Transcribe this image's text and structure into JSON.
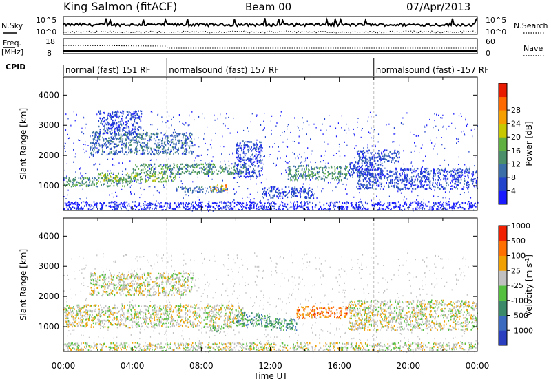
{
  "header": {
    "station": "King Salmon (fitACF)",
    "beam": "Beam 00",
    "date": "07/Apr/2013"
  },
  "left_labels": {
    "nsky": "N.Sky",
    "freq": "Freq.",
    "freq_unit": "[MHz]",
    "cpid": "CPID"
  },
  "right_labels": {
    "nsearch": "N.Search",
    "nave": "Nave"
  },
  "noise_axis": {
    "top": "10^5",
    "bottom": "10^0"
  },
  "freq_axis": {
    "top": "18",
    "bottom": "8"
  },
  "nave_axis": {
    "top": "60",
    "bottom": "0"
  },
  "cpid_segments": [
    {
      "label": "normal (fast) 151 RF",
      "start_hour": 0,
      "end_hour": 6
    },
    {
      "label": "normalsound (fast) 157 RF",
      "start_hour": 6,
      "end_hour": 18
    },
    {
      "label": "normalsound (fast) -157 RF",
      "start_hour": 18,
      "end_hour": 24
    }
  ],
  "power_colorbar": {
    "label": "Power [dB]",
    "ticks": [
      "4",
      "8",
      "12",
      "16",
      "20",
      "24",
      "28"
    ],
    "colors": [
      "#1a1aff",
      "#2244cc",
      "#3b6fa8",
      "#4a8f6a",
      "#5fb040",
      "#c8c800",
      "#f5a000",
      "#ff6a00",
      "#e81a00"
    ]
  },
  "velocity_colorbar": {
    "label_main": "Velocity [m s",
    "label_sup": "-1",
    "label_end": "]",
    "ticks": [
      "1000",
      "500",
      "100",
      "25",
      "-25",
      "-100",
      "-500",
      "-1000"
    ],
    "colors": [
      "#2a3fc0",
      "#3a6ac0",
      "#3a8a6a",
      "#55c040",
      "#c0c0c0",
      "#f0a000",
      "#ff7000",
      "#f02000"
    ]
  },
  "chart_data": {
    "type": "heatmap",
    "panels": [
      {
        "name": "Power",
        "ylabel": "Slant Range [km]",
        "yticks": [
          1000,
          2000,
          3000,
          4000
        ],
        "ylim": [
          180,
          4600
        ],
        "x_range_hours": [
          0,
          24
        ],
        "bands": [
          {
            "x0": 0.0,
            "x1": 4.0,
            "y0": 1000,
            "y1": 1300,
            "c": 3
          },
          {
            "x0": 2.0,
            "x1": 6.5,
            "y0": 1150,
            "y1": 1450,
            "c": 4
          },
          {
            "x0": 4.0,
            "x1": 10.5,
            "y0": 1400,
            "y1": 1750,
            "c": 3
          },
          {
            "x0": 8.5,
            "x1": 9.5,
            "y0": 850,
            "y1": 1050,
            "c": 6
          },
          {
            "x0": 6.5,
            "x1": 9.5,
            "y0": 800,
            "y1": 1000,
            "c": 2
          },
          {
            "x0": 1.5,
            "x1": 7.5,
            "y0": 2050,
            "y1": 2800,
            "c": 2
          },
          {
            "x0": 2.0,
            "x1": 4.5,
            "y0": 2700,
            "y1": 3500,
            "c": 1
          },
          {
            "x0": 10.0,
            "x1": 11.5,
            "y0": 1300,
            "y1": 2500,
            "c": 1
          },
          {
            "x0": 11.5,
            "x1": 14.5,
            "y0": 600,
            "y1": 1000,
            "c": 1
          },
          {
            "x0": 13.0,
            "x1": 16.5,
            "y0": 1200,
            "y1": 1700,
            "c": 3
          },
          {
            "x0": 16.5,
            "x1": 18.5,
            "y0": 1300,
            "y1": 1800,
            "c": 1
          },
          {
            "x0": 17.0,
            "x1": 24.0,
            "y0": 900,
            "y1": 1600,
            "c": 1
          },
          {
            "x0": 17.0,
            "x1": 19.5,
            "y0": 1800,
            "y1": 2200,
            "c": 1
          },
          {
            "x0": 0.0,
            "x1": 24.0,
            "y0": 220,
            "y1": 500,
            "c": 0
          }
        ]
      },
      {
        "name": "Velocity",
        "ylabel": "Slant Range [km]",
        "yticks": [
          1000,
          2000,
          3000,
          4000
        ],
        "ylim": [
          180,
          4600
        ],
        "x_range_hours": [
          0,
          24
        ],
        "bands": [
          {
            "x0": 0.0,
            "x1": 10.5,
            "y0": 1000,
            "y1": 1750,
            "c": 4
          },
          {
            "x0": 1.5,
            "x1": 7.5,
            "y0": 2050,
            "y1": 2800,
            "c": 4
          },
          {
            "x0": 8.5,
            "x1": 9.5,
            "y0": 850,
            "y1": 1050,
            "c": 3
          },
          {
            "x0": 10.0,
            "x1": 12.0,
            "y0": 1000,
            "y1": 1500,
            "c": 2
          },
          {
            "x0": 12.0,
            "x1": 13.5,
            "y0": 900,
            "y1": 1300,
            "c": 2
          },
          {
            "x0": 13.5,
            "x1": 16.5,
            "y0": 1300,
            "y1": 1700,
            "c": 6
          },
          {
            "x0": 16.5,
            "x1": 24.0,
            "y0": 900,
            "y1": 1900,
            "c": 4
          },
          {
            "x0": 0.0,
            "x1": 24.0,
            "y0": 220,
            "y1": 500,
            "c": 4
          }
        ]
      }
    ],
    "x_ticks": [
      "00:00",
      "04:00",
      "08:00",
      "12:00",
      "16:00",
      "20:00",
      "00:00"
    ],
    "xlabel": "Time UT"
  }
}
